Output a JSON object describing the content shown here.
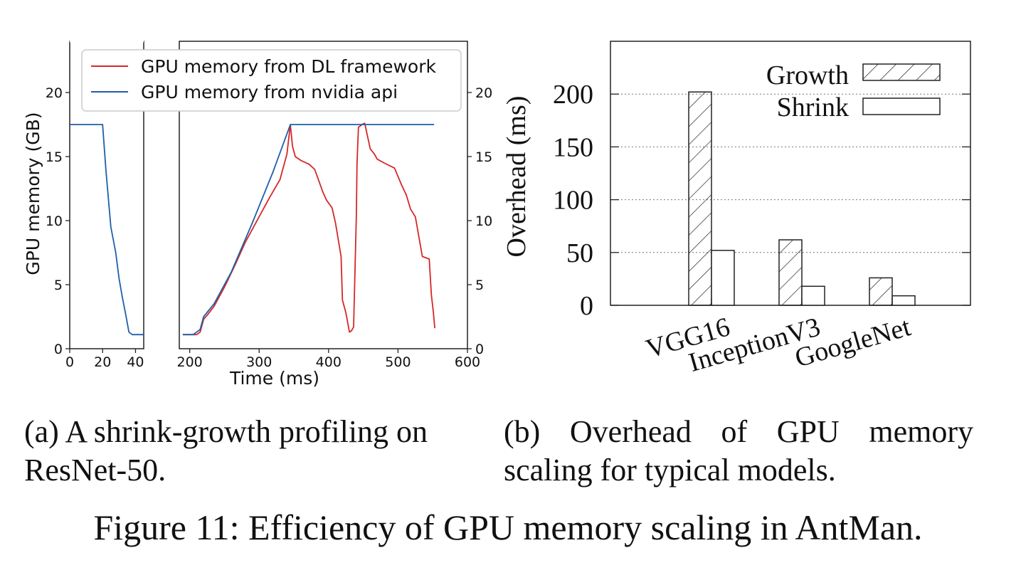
{
  "chart_data": [
    {
      "type": "line",
      "panel": "a",
      "xlabel": "Time (ms)",
      "ylabel": "GPU memory (GB)",
      "ylim": [
        0,
        24
      ],
      "y_ticks": [
        0,
        5,
        10,
        15,
        20
      ],
      "right_y_ticks": [
        0,
        5,
        10,
        15,
        20
      ],
      "broken_x_axis": true,
      "segments": [
        {
          "xlim": [
            0,
            45
          ],
          "x_ticks": [
            0,
            20,
            40
          ]
        },
        {
          "xlim": [
            185,
            600
          ],
          "x_ticks": [
            200,
            300,
            400,
            500,
            600
          ]
        }
      ],
      "legend_location": "top-right",
      "series": [
        {
          "name": "GPU memory from DL framework",
          "color": "#d62728",
          "segment": 1,
          "x": [
            190,
            200,
            210,
            215,
            220,
            225,
            235,
            250,
            265,
            280,
            300,
            315,
            330,
            340,
            345,
            348,
            352,
            360,
            372,
            380,
            392,
            397,
            405,
            410,
            418,
            420,
            425,
            430,
            433,
            436,
            440,
            441,
            443,
            446,
            448,
            452,
            460,
            466,
            470,
            480,
            495,
            505,
            512,
            518,
            525,
            535,
            545,
            548,
            551,
            553
          ],
          "y": [
            1.1,
            1.1,
            1.1,
            1.3,
            2.3,
            2.6,
            3.3,
            4.8,
            6.5,
            8.3,
            10.3,
            11.8,
            13.2,
            15.2,
            17.5,
            15.8,
            15.0,
            14.7,
            14.4,
            14.0,
            12.2,
            11.6,
            11.0,
            9.8,
            7.2,
            3.8,
            2.8,
            1.3,
            1.4,
            1.7,
            10.5,
            14.5,
            17.3,
            17.4,
            17.5,
            17.6,
            15.6,
            15.2,
            14.8,
            14.5,
            14.1,
            12.8,
            12.0,
            10.9,
            10.3,
            7.2,
            7.0,
            4.2,
            2.8,
            1.6
          ]
        },
        {
          "name": "GPU memory from nvidia api",
          "color": "#1f5fa8",
          "segment": "both",
          "x": [
            0,
            20,
            22,
            25,
            28,
            30,
            32,
            34,
            36,
            38,
            40,
            45,
            190,
            205,
            215,
            220,
            235,
            260,
            290,
            320,
            345,
            400,
            500,
            552
          ],
          "y": [
            17.5,
            17.5,
            14.0,
            9.5,
            7.5,
            5.5,
            4.0,
            2.7,
            1.3,
            1.1,
            1.1,
            1.1,
            1.1,
            1.1,
            1.5,
            2.5,
            3.5,
            6.0,
            9.8,
            13.8,
            17.5,
            17.5,
            17.5,
            17.5
          ]
        }
      ]
    },
    {
      "type": "bar",
      "panel": "b",
      "ylabel": "Overhead (ms)",
      "ylim": [
        0,
        250
      ],
      "y_ticks": [
        0,
        50,
        100,
        150,
        200
      ],
      "grid": "horizontal dotted",
      "legend_location": "top-right",
      "categories": [
        "VGG16",
        "InceptionV3",
        "GoogleNet"
      ],
      "series": [
        {
          "name": "Growth",
          "pattern": "hatched",
          "values": [
            202,
            62,
            26
          ]
        },
        {
          "name": "Shrink",
          "pattern": "solid-white",
          "values": [
            52,
            18,
            9
          ]
        }
      ]
    }
  ],
  "captions": {
    "a": "(a) A shrink-growth profiling on ResNet-50.",
    "b": "(b) Overhead of GPU memory scaling for typical models.",
    "figure": "Figure 11: Efficiency of GPU memory scaling in AntMan."
  }
}
